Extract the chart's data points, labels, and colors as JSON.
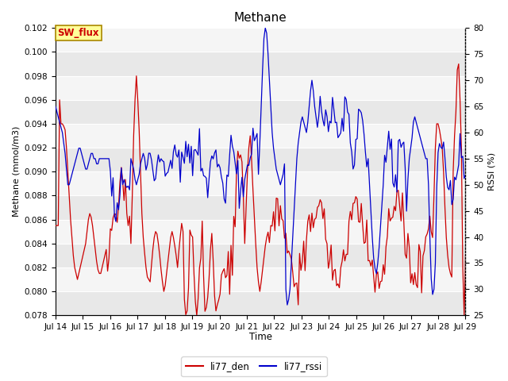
{
  "title": "Methane",
  "xlabel": "Time",
  "ylabel_left": "Methane (mmol/m3)",
  "ylabel_right": "RSSI (%)",
  "ylim_left": [
    0.078,
    0.102
  ],
  "ylim_right": [
    25,
    80
  ],
  "yticks_left": [
    0.078,
    0.08,
    0.082,
    0.084,
    0.086,
    0.088,
    0.09,
    0.092,
    0.094,
    0.096,
    0.098,
    0.1,
    0.102
  ],
  "yticks_right": [
    25,
    30,
    35,
    40,
    45,
    50,
    55,
    60,
    65,
    70,
    75,
    80
  ],
  "xtick_labels": [
    "Jul 14",
    "Jul 15",
    "Jul 16",
    "Jul 17",
    "Jul 18",
    "Jul 19",
    "Jul 20",
    "Jul 21",
    "Jul 22",
    "Jul 23",
    "Jul 24",
    "Jul 25",
    "Jul 26",
    "Jul 27",
    "Jul 28",
    "Jul 29"
  ],
  "fig_bg_color": "#ffffff",
  "plot_bg_color": "#e8e8e8",
  "band_color_light": "#f5f5f5",
  "band_color_dark": "#e0e0e0",
  "line_color_red": "#cc0000",
  "line_color_blue": "#0000cc",
  "legend_red": "li77_den",
  "legend_blue": "li77_rssi",
  "sw_flux_label": "SW_flux",
  "sw_flux_bg": "#ffff99",
  "sw_flux_border": "#aa8800",
  "sw_flux_text_color": "#cc0000",
  "figsize": [
    6.4,
    4.8
  ],
  "dpi": 100
}
